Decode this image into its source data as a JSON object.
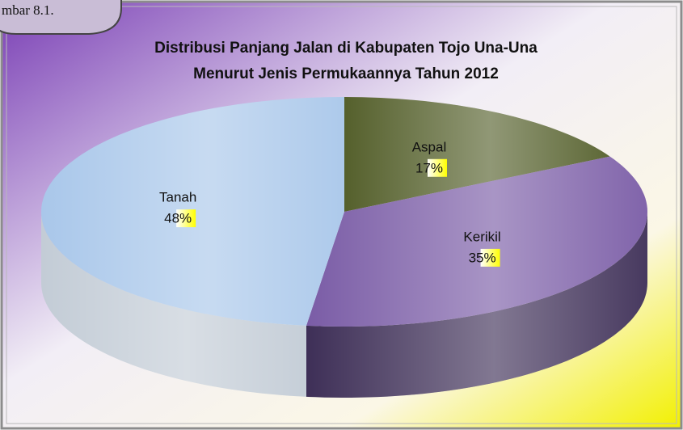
{
  "figure_label": "mbar 8.1.",
  "chart_data": {
    "type": "pie3d",
    "title": [
      "Distribusi Panjang Jalan  di Kabupaten Tojo Una-Una",
      "Menurut Jenis Permukaannya Tahun 2012"
    ],
    "categories": [
      "Aspal",
      "Kerikil",
      "Tanah"
    ],
    "values": [
      17,
      35,
      48
    ],
    "value_labels": [
      "17%",
      "35%",
      "48%"
    ],
    "colors": [
      "#55602c",
      "#7a5ca6",
      "#a9c7ea"
    ],
    "side_colors": [
      "#3c4320",
      "#3e2f57",
      "#c3ccd6"
    ]
  }
}
